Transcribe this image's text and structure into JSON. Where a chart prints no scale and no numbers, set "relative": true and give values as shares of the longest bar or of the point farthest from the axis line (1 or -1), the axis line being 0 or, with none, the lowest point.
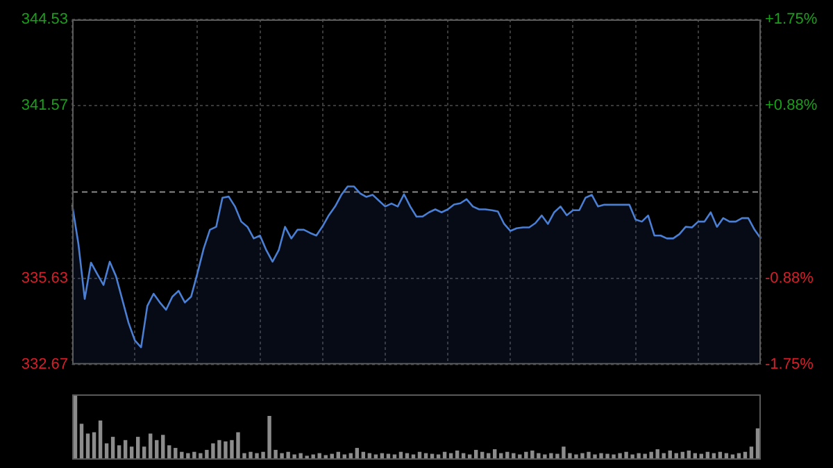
{
  "chart_data": [
    {
      "type": "area",
      "categories": [
        null,
        null,
        null,
        null,
        null,
        null,
        null,
        null,
        null,
        null,
        null,
        null,
        null,
        null,
        null,
        null,
        null,
        null,
        null,
        null,
        null,
        null,
        null,
        null,
        null,
        null,
        null,
        null,
        null,
        null,
        null,
        null,
        null,
        null,
        null,
        null,
        null,
        null,
        null,
        null,
        null,
        null,
        null,
        null,
        null,
        null,
        null,
        null,
        null,
        null,
        null,
        null,
        null,
        null,
        null,
        null,
        null,
        null,
        null,
        null,
        null,
        null,
        null,
        null,
        null,
        null,
        null,
        null,
        null,
        null,
        null,
        null,
        null,
        null,
        null,
        null,
        null,
        null,
        null,
        null,
        null,
        null,
        null,
        null,
        null,
        null,
        null,
        null,
        null,
        null,
        null,
        null,
        null,
        null,
        null,
        null,
        null,
        null,
        null,
        null,
        null,
        null,
        null,
        null,
        null,
        null,
        null,
        null,
        null,
        null,
        null
      ],
      "ylim": [
        332.67,
        344.53
      ],
      "yticks": [
        332.67,
        335.63,
        341.57,
        344.53
      ],
      "y2lim": [
        -1.75,
        1.75
      ],
      "y2ticks": [
        {
          "value": -1.75,
          "label": "-1.75%"
        },
        {
          "value": -0.88,
          "label": "-0.88%"
        },
        {
          "value": 0.88,
          "label": "+0.88%"
        },
        {
          "value": 1.75,
          "label": "+1.75%"
        }
      ],
      "ref_lines": [
        {
          "axis": "y",
          "value": 338.6,
          "label": null,
          "color": "#8a8a8a",
          "line_style": "dashed"
        }
      ],
      "grid": true,
      "legend": false,
      "tick_labels": "y",
      "marker": "none",
      "series": [
        {
          "color": "#4a7fd4",
          "values": [
            338.16,
            336.8,
            334.92,
            336.17,
            335.78,
            335.4,
            336.2,
            335.7,
            334.9,
            334.1,
            333.5,
            333.26,
            334.68,
            335.1,
            334.8,
            334.55,
            335.0,
            335.2,
            334.8,
            335.0,
            335.8,
            336.65,
            337.3,
            337.4,
            338.4,
            338.44,
            338.1,
            337.58,
            337.4,
            337.0,
            337.1,
            336.6,
            336.2,
            336.6,
            337.4,
            337.0,
            337.3,
            337.3,
            337.19,
            337.1,
            337.42,
            337.8,
            338.1,
            338.5,
            338.79,
            338.79,
            338.55,
            338.43,
            338.5,
            338.3,
            338.1,
            338.2,
            338.1,
            338.52,
            338.1,
            337.75,
            337.76,
            337.9,
            338.0,
            337.9,
            338.0,
            338.17,
            338.21,
            338.35,
            338.1,
            338.0,
            338.0,
            337.97,
            337.93,
            337.5,
            337.26,
            337.35,
            337.38,
            337.38,
            337.53,
            337.79,
            337.5,
            337.9,
            338.1,
            337.8,
            337.97,
            337.97,
            338.4,
            338.5,
            338.1,
            338.16,
            338.16,
            338.16,
            338.16,
            338.16,
            337.65,
            337.58,
            337.79,
            337.1,
            337.1,
            337.0,
            337.0,
            337.15,
            337.4,
            337.38,
            337.58,
            337.58,
            337.9,
            337.4,
            337.7,
            337.58,
            337.58,
            337.7,
            337.7,
            337.3,
            337.0
          ]
        }
      ]
    },
    {
      "type": "bar",
      "relative": true,
      "legend": false,
      "categories": [
        null,
        null,
        null,
        null,
        null,
        null,
        null,
        null,
        null,
        null,
        null,
        null,
        null,
        null,
        null,
        null,
        null,
        null,
        null,
        null,
        null,
        null,
        null,
        null,
        null,
        null,
        null,
        null,
        null,
        null,
        null,
        null,
        null,
        null,
        null,
        null,
        null,
        null,
        null,
        null,
        null,
        null,
        null,
        null,
        null,
        null,
        null,
        null,
        null,
        null,
        null,
        null,
        null,
        null,
        null,
        null,
        null,
        null,
        null,
        null,
        null,
        null,
        null,
        null,
        null,
        null,
        null,
        null,
        null,
        null,
        null,
        null,
        null,
        null,
        null,
        null,
        null,
        null,
        null,
        null,
        null,
        null,
        null,
        null,
        null,
        null,
        null,
        null,
        null,
        null,
        null,
        null,
        null,
        null,
        null,
        null,
        null,
        null,
        null,
        null,
        null,
        null,
        null,
        null,
        null,
        null,
        null,
        null,
        null,
        null
      ],
      "color": "#8c8c8c",
      "values": [
        1,
        0.55,
        0.4,
        0.42,
        0.6,
        0.25,
        0.35,
        0.22,
        0.3,
        0.2,
        0.35,
        0.2,
        0.4,
        0.3,
        0.38,
        0.22,
        0.18,
        0.12,
        0.1,
        0.12,
        0.1,
        0.15,
        0.25,
        0.3,
        0.28,
        0.3,
        0.42,
        0.1,
        0.12,
        0.1,
        0.12,
        0.67,
        0.15,
        0.1,
        0.12,
        0.08,
        0.1,
        0.06,
        0.08,
        0.1,
        0.07,
        0.09,
        0.12,
        0.08,
        0.1,
        0.18,
        0.12,
        0.1,
        0.08,
        0.1,
        0.09,
        0.08,
        0.12,
        0.1,
        0.08,
        0.12,
        0.1,
        0.09,
        0.08,
        0.12,
        0.1,
        0.14,
        0.1,
        0.08,
        0.15,
        0.12,
        0.1,
        0.16,
        0.1,
        0.12,
        0.1,
        0.08,
        0.12,
        0.14,
        0.1,
        0.08,
        0.1,
        0.09,
        0.2,
        0.1,
        0.08,
        0.1,
        0.12,
        0.08,
        0.1,
        0.09,
        0.08,
        0.1,
        0.12,
        0.08,
        0.1,
        0.09,
        0.12,
        0.16,
        0.1,
        0.14,
        0.1,
        0.12,
        0.14,
        0.1,
        0.09,
        0.12,
        0.1,
        0.12,
        0.1,
        0.08,
        0.1,
        0.12,
        0.2,
        0.48
      ]
    }
  ]
}
